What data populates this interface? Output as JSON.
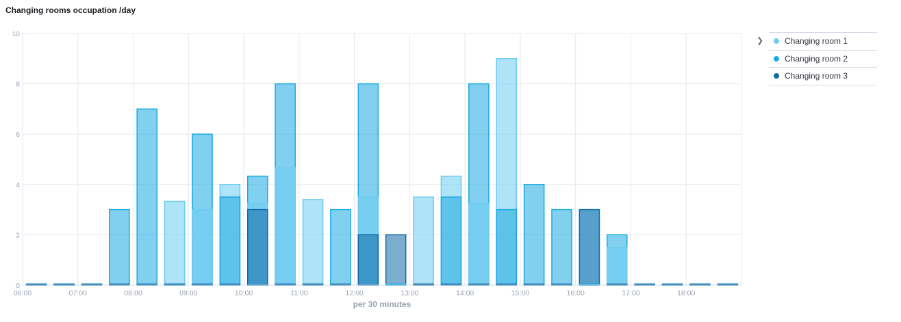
{
  "title": "Changing rooms occupation /day",
  "chart_data": {
    "type": "bar",
    "xlabel": "per 30 minutes",
    "ylabel": "",
    "ylim": [
      0,
      10
    ],
    "yticks": [
      0,
      2,
      4,
      6,
      8,
      10
    ],
    "xticks": [
      "06:00",
      "07:00",
      "08:00",
      "09:00",
      "10:00",
      "11:00",
      "12:00",
      "13:00",
      "14:00",
      "15:00",
      "16:00",
      "17:00",
      "18:00"
    ],
    "grid": true,
    "legend_position": "right",
    "categories": [
      "06:00",
      "06:30",
      "07:00",
      "07:30",
      "08:00",
      "08:30",
      "09:00",
      "09:30",
      "10:00",
      "10:30",
      "11:00",
      "11:30",
      "12:00",
      "12:30",
      "13:00",
      "13:30",
      "14:00",
      "14:30",
      "15:00",
      "15:30",
      "16:00",
      "16:30",
      "17:00",
      "17:30",
      "18:00",
      "18:30"
    ],
    "series": [
      {
        "name": "Changing room 1",
        "color": "#6dccf1",
        "values": [
          0,
          0,
          0,
          0,
          0,
          3.33,
          3,
          4,
          3.25,
          4.67,
          3.4,
          0,
          3.5,
          0,
          3.5,
          4.33,
          3.25,
          9,
          0,
          0,
          3,
          1.5,
          0,
          0,
          0,
          0
        ]
      },
      {
        "name": "Changing room 2",
        "color": "#1ba9e1",
        "values": [
          0,
          0,
          0,
          3,
          7,
          0,
          6,
          3.5,
          4.33,
          8,
          0,
          3,
          8,
          0,
          0,
          3.5,
          8,
          3,
          4,
          3,
          0,
          2,
          0,
          0,
          0,
          0
        ]
      },
      {
        "name": "Changing room 3",
        "color": "#0f6aa8",
        "values": [
          0,
          0,
          0,
          0,
          0,
          0,
          0,
          0,
          3,
          0,
          0,
          0,
          2,
          2,
          0,
          0,
          0,
          0,
          0,
          0,
          3,
          0,
          0,
          0,
          0,
          0
        ]
      }
    ]
  },
  "legend": {
    "items": [
      {
        "label": "Changing room 1",
        "color": "#6dccf1"
      },
      {
        "label": "Changing room 2",
        "color": "#1ba9e1"
      },
      {
        "label": "Changing room 3",
        "color": "#0f6aa8"
      }
    ]
  }
}
